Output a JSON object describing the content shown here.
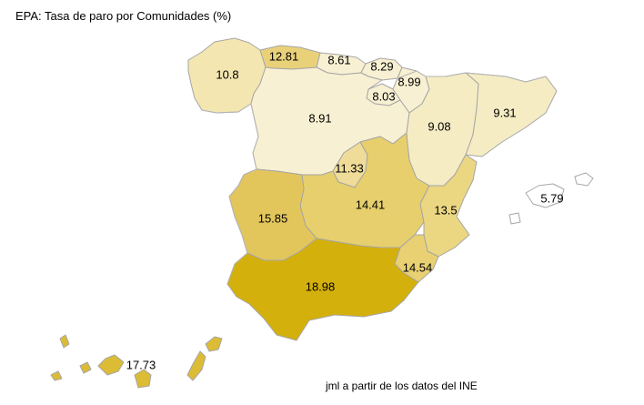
{
  "title": "EPA: Tasa de paro por Comunidades (%)",
  "credit": "jml a partir de los datos del INE",
  "regions": [
    {
      "name": "Galicia",
      "value": "10.8",
      "color": "#f3e6b0"
    },
    {
      "name": "Asturias",
      "value": "12.81",
      "color": "#e9d17a"
    },
    {
      "name": "Cantabria",
      "value": "8.61",
      "color": "#f8f0d2"
    },
    {
      "name": "País Vasco",
      "value": "8.29",
      "color": "#f8f0d2"
    },
    {
      "name": "Navarra",
      "value": "8.99",
      "color": "#f8f0d2"
    },
    {
      "name": "La Rioja",
      "value": "8.03",
      "color": "#f8f0d2"
    },
    {
      "name": "Castilla y León",
      "value": "8.91",
      "color": "#f8f0d2"
    },
    {
      "name": "Aragón",
      "value": "9.08",
      "color": "#f5ecc4"
    },
    {
      "name": "Cataluña",
      "value": "9.31",
      "color": "#f5ecc4"
    },
    {
      "name": "Madrid",
      "value": "11.33",
      "color": "#efdc98"
    },
    {
      "name": "Castilla-La Mancha",
      "value": "14.41",
      "color": "#e6cf6c"
    },
    {
      "name": "Extremadura",
      "value": "15.85",
      "color": "#e2c65c"
    },
    {
      "name": "Comunidad Valenciana",
      "value": "13.5",
      "color": "#ebd682"
    },
    {
      "name": "Murcia",
      "value": "14.54",
      "color": "#e8d073"
    },
    {
      "name": "Andalucía",
      "value": "18.98",
      "color": "#d4b00c"
    },
    {
      "name": "Baleares",
      "value": "5.79",
      "color": "#ffffff"
    },
    {
      "name": "Canarias",
      "value": "17.73",
      "color": "#dcbc35"
    }
  ]
}
